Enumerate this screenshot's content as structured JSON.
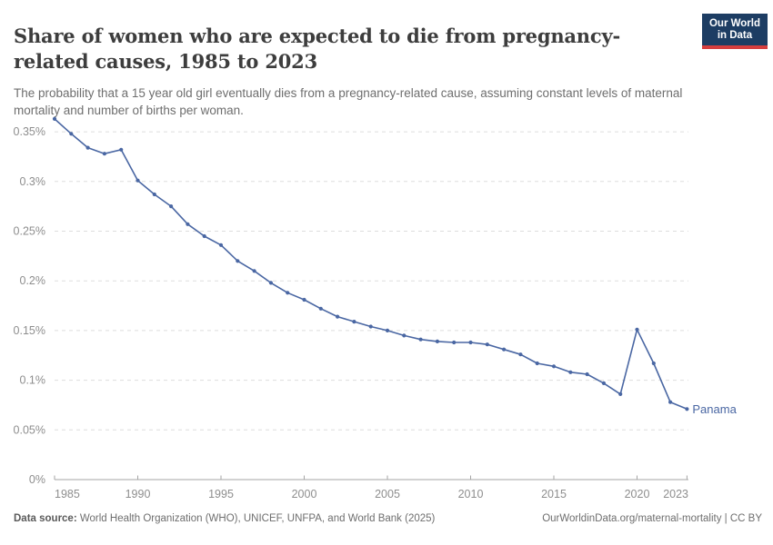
{
  "header": {
    "title": "Share of women who are expected to die from pregnancy-related causes, 1985 to 2023",
    "subtitle": "The probability that a 15 year old girl eventually dies from a pregnancy-related cause, assuming constant levels of maternal mortality and number of births per woman.",
    "logo": {
      "line1": "Our World",
      "line2": "in Data",
      "bg_color": "#1d3d63",
      "accent_color": "#d63e3e"
    }
  },
  "chart_data": {
    "type": "line",
    "title": "Share of women who are expected to die from pregnancy-related causes, 1985 to 2023",
    "x": [
      1985,
      1986,
      1987,
      1988,
      1989,
      1990,
      1991,
      1992,
      1993,
      1994,
      1995,
      1996,
      1997,
      1998,
      1999,
      2000,
      2001,
      2002,
      2003,
      2004,
      2005,
      2006,
      2007,
      2008,
      2009,
      2010,
      2011,
      2012,
      2013,
      2014,
      2015,
      2016,
      2017,
      2018,
      2019,
      2020,
      2021,
      2022,
      2023
    ],
    "series": [
      {
        "name": "Panama",
        "color": "#4a67a3",
        "values": [
          0.363,
          0.348,
          0.334,
          0.328,
          0.332,
          0.301,
          0.287,
          0.275,
          0.257,
          0.245,
          0.236,
          0.22,
          0.21,
          0.198,
          0.188,
          0.181,
          0.172,
          0.164,
          0.159,
          0.154,
          0.15,
          0.145,
          0.141,
          0.139,
          0.138,
          0.138,
          0.136,
          0.131,
          0.126,
          0.117,
          0.114,
          0.108,
          0.106,
          0.097,
          0.086,
          0.151,
          0.117,
          0.078,
          0.071
        ]
      }
    ],
    "unit_suffix": "%",
    "xlabel": "",
    "ylabel": "",
    "xlim": [
      1985,
      2023
    ],
    "ylim": [
      0,
      0.365
    ],
    "x_ticks": [
      1985,
      1990,
      1995,
      2000,
      2005,
      2010,
      2015,
      2020,
      2023
    ],
    "y_ticks": [
      0,
      0.05,
      0.1,
      0.15,
      0.2,
      0.25,
      0.3,
      0.35
    ],
    "y_tick_labels": [
      "0%",
      "0.05%",
      "0.1%",
      "0.15%",
      "0.2%",
      "0.25%",
      "0.3%",
      "0.35%"
    ],
    "grid": "dashed-horizontal",
    "legend_position": "end-of-line-label",
    "end_label": "Panama",
    "colors": {
      "line": "#4a67a3",
      "grid": "#dddddd",
      "axis": "#a5a5a5",
      "tick_label": "#8e8e8e"
    }
  },
  "footer": {
    "source_label": "Data source:",
    "source_text": " World Health Organization (WHO), UNICEF, UNFPA, and World Bank (2025)",
    "license": "OurWorldinData.org/maternal-mortality | CC BY"
  }
}
